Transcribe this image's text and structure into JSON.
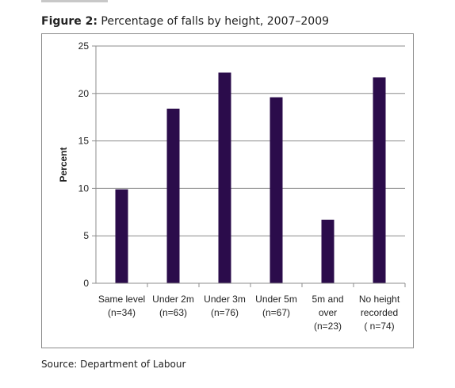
{
  "figure": {
    "label": "Figure 2:",
    "title": "Percentage of falls by height, 2007–2009"
  },
  "source": "Source: Department of Labour",
  "chart_data": {
    "type": "bar",
    "title": "Percentage of falls by height, 2007–2009",
    "ylabel": "Percent",
    "xlabel": "",
    "ylim": [
      0,
      25
    ],
    "yticks": [
      0,
      5,
      10,
      15,
      20,
      25
    ],
    "grid": true,
    "bar_color": "#2b0c4b",
    "categories": [
      [
        "Same level",
        "(n=34)"
      ],
      [
        "Under 2m",
        "(n=63)"
      ],
      [
        "Under 3m",
        "(n=76)"
      ],
      [
        "Under 5m",
        "(n=67)"
      ],
      [
        "5m and",
        "over",
        "(n=23)"
      ],
      [
        "No height",
        "recorded",
        "( n=74)"
      ]
    ],
    "values": [
      9.9,
      18.4,
      22.2,
      19.6,
      6.7,
      21.7
    ]
  }
}
